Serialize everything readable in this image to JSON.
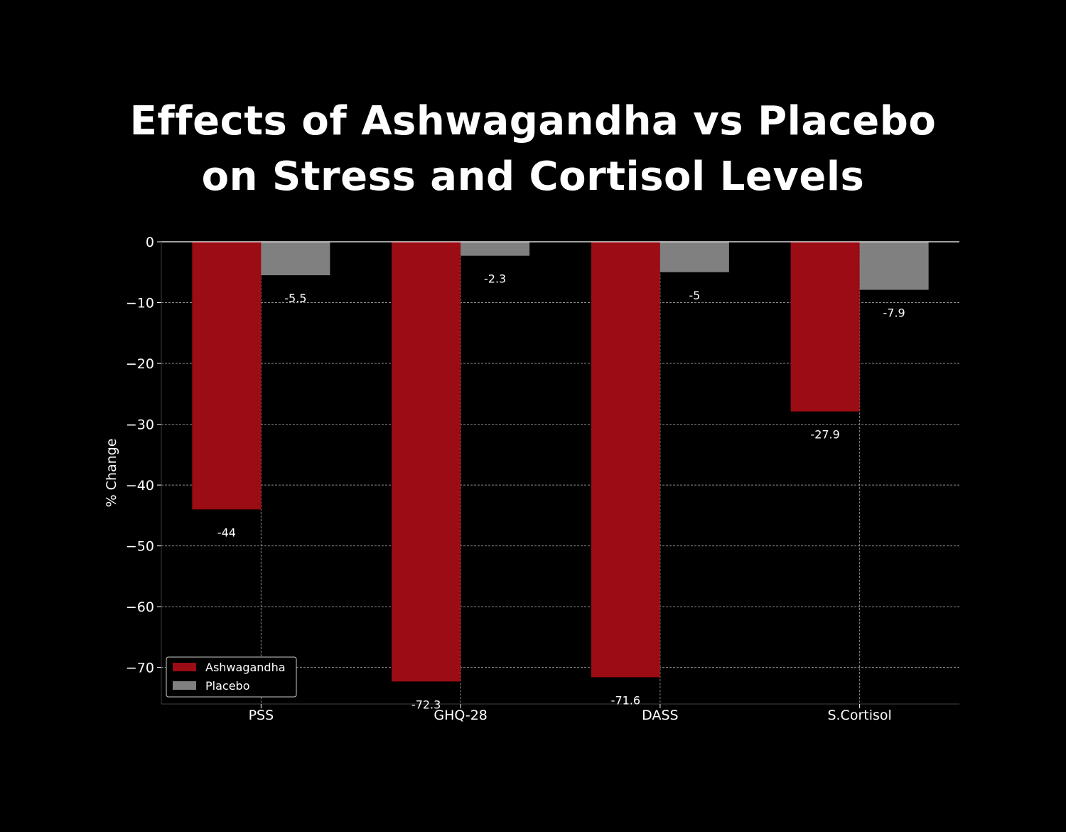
{
  "title_lines": [
    "Effects of Ashwagandha vs Placebo",
    "on Stress and Cortisol Levels"
  ],
  "chart_data": {
    "type": "bar",
    "title": "Effects of Ashwagandha vs Placebo on Stress and Cortisol Levels",
    "xlabel": "",
    "ylabel": "% Change",
    "categories": [
      "PSS",
      "GHQ-28",
      "DASS",
      "S.Cortisol"
    ],
    "series": [
      {
        "name": "Ashwagandha",
        "values": [
          -44,
          -72.3,
          -71.6,
          -27.9
        ],
        "labels": [
          "-44",
          "-72.3",
          "-71.6",
          "-27.9"
        ],
        "color": "#9b0c14"
      },
      {
        "name": "Placebo",
        "values": [
          -5.5,
          -2.3,
          -5,
          -7.9
        ],
        "labels": [
          "-5.5",
          "-2.3",
          "-5",
          "-7.9"
        ],
        "color": "#808080"
      }
    ],
    "ylim": [
      -76,
      0
    ],
    "yticks": [
      0,
      -10,
      -20,
      -30,
      -40,
      -50,
      -60,
      -70
    ],
    "ytick_labels": [
      "0",
      "−10",
      "−20",
      "−30",
      "−40",
      "−50",
      "−60",
      "−70"
    ],
    "grid": true,
    "legend": "lower-left",
    "colors": {
      "background": "#000000",
      "text": "#ffffff",
      "grid": "#8a8a8a",
      "spine": "#ffffff"
    }
  }
}
